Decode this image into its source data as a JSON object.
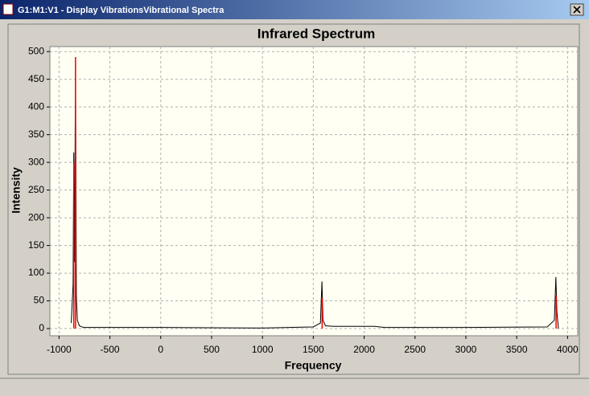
{
  "window": {
    "title": "G1:M1:V1 - Display VibrationsVibrational Spectra"
  },
  "chart_data": {
    "type": "line",
    "title": "Infrared Spectrum",
    "x_label": "Frequency",
    "y_label": "Intensity",
    "xlim": [
      -1090,
      4100
    ],
    "ylim": [
      -13,
      509
    ],
    "xticks": [
      -1000,
      -500,
      0,
      500,
      1000,
      1500,
      2000,
      2500,
      3000,
      3500,
      4000
    ],
    "yticks": [
      0,
      50,
      100,
      150,
      200,
      250,
      300,
      350,
      400,
      450,
      500
    ],
    "grid": true,
    "series": [
      {
        "color": "#000000",
        "style": "line",
        "x": [
          -880,
          -862,
          -855,
          -848,
          -838,
          -830,
          -820,
          -800,
          -760,
          0,
          1000,
          1500,
          1570,
          1585,
          1595,
          1620,
          1700,
          2100,
          2200,
          3000,
          3800,
          3870,
          3885,
          3895,
          3910
        ],
        "values": [
          10,
          80,
          318,
          120,
          490,
          60,
          15,
          5,
          2,
          2,
          1,
          3,
          10,
          85,
          15,
          5,
          4,
          4,
          2,
          2,
          3,
          15,
          93,
          30,
          0
        ]
      },
      {
        "color": "#ff0000",
        "style": "stick",
        "x": [
          -855,
          -838,
          1587,
          3887
        ],
        "values": [
          300,
          490,
          55,
          60
        ]
      }
    ]
  }
}
